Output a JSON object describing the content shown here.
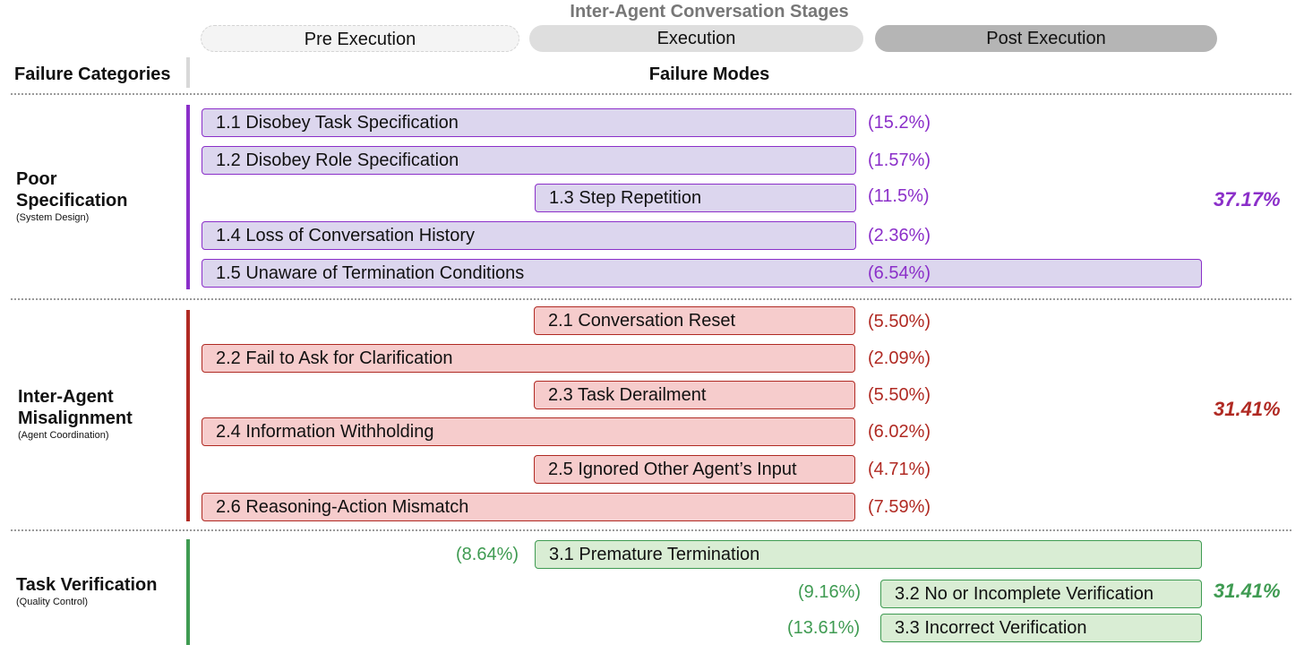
{
  "title": "Inter-Agent Conversation Stages",
  "stages": [
    "Pre Execution",
    "Execution",
    "Post Execution"
  ],
  "headers": {
    "categories": "Failure Categories",
    "modes": "Failure Modes"
  },
  "colors": {
    "cat1": "#8b2fc9",
    "cat2": "#b02a23",
    "cat3": "#3f9b52"
  },
  "categories": [
    {
      "name_line1": "Poor",
      "name_line2": "Specification",
      "sub": "(System Design)",
      "total": "37.17%",
      "modes": [
        {
          "label": "1.1 Disobey Task Specification",
          "pct": "(15.2%)"
        },
        {
          "label": "1.2 Disobey Role Specification",
          "pct": "(1.57%)"
        },
        {
          "label": "1.3 Step Repetition",
          "pct": "(11.5%)"
        },
        {
          "label": "1.4 Loss of Conversation History",
          "pct": "(2.36%)"
        },
        {
          "label": "1.5 Unaware of Termination Conditions",
          "pct": "(6.54%)"
        }
      ]
    },
    {
      "name_line1": "Inter-Agent",
      "name_line2": "Misalignment",
      "sub": "(Agent Coordination)",
      "total": "31.41%",
      "modes": [
        {
          "label": "2.1 Conversation Reset",
          "pct": "(5.50%)"
        },
        {
          "label": "2.2 Fail to Ask for Clarification",
          "pct": "(2.09%)"
        },
        {
          "label": "2.3 Task Derailment",
          "pct": "(5.50%)"
        },
        {
          "label": "2.4 Information Withholding",
          "pct": "(6.02%)"
        },
        {
          "label": "2.5 Ignored Other Agent’s Input",
          "pct": "(4.71%)"
        },
        {
          "label": "2.6 Reasoning-Action Mismatch",
          "pct": "(7.59%)"
        }
      ]
    },
    {
      "name_line1": "Task Verification",
      "sub": "(Quality Control)",
      "total": "31.41%",
      "modes": [
        {
          "label": "3.1  Premature Termination",
          "pct": "(8.64%)"
        },
        {
          "label": "3.2 No or Incomplete Verification",
          "pct": "(9.16%)"
        },
        {
          "label": "3.3 Incorrect Verification",
          "pct": "(13.61%)"
        }
      ]
    }
  ]
}
